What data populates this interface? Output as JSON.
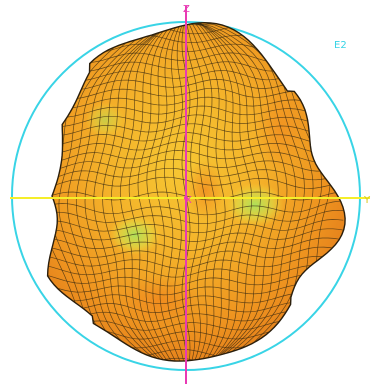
{
  "plot": {
    "corner_label": "E2",
    "axis_label_z": "Z",
    "axis_label_x": "X",
    "axis_label_y": "Y"
  },
  "colors": {
    "background": "#ffffff",
    "reference_circle": "#39d4e6",
    "z_axis": "#e83ab4",
    "horizontal_axis": "#f5ee2a",
    "mesh_line": "#3a2a10",
    "surface_low": "#f08a1c",
    "surface_mid": "#f6b52a",
    "surface_high": "#f3d93a",
    "surface_hot": "#a6e05a"
  },
  "surface": {
    "shape": "3d-radiation-pattern",
    "mesh": "wireframe-grid"
  }
}
